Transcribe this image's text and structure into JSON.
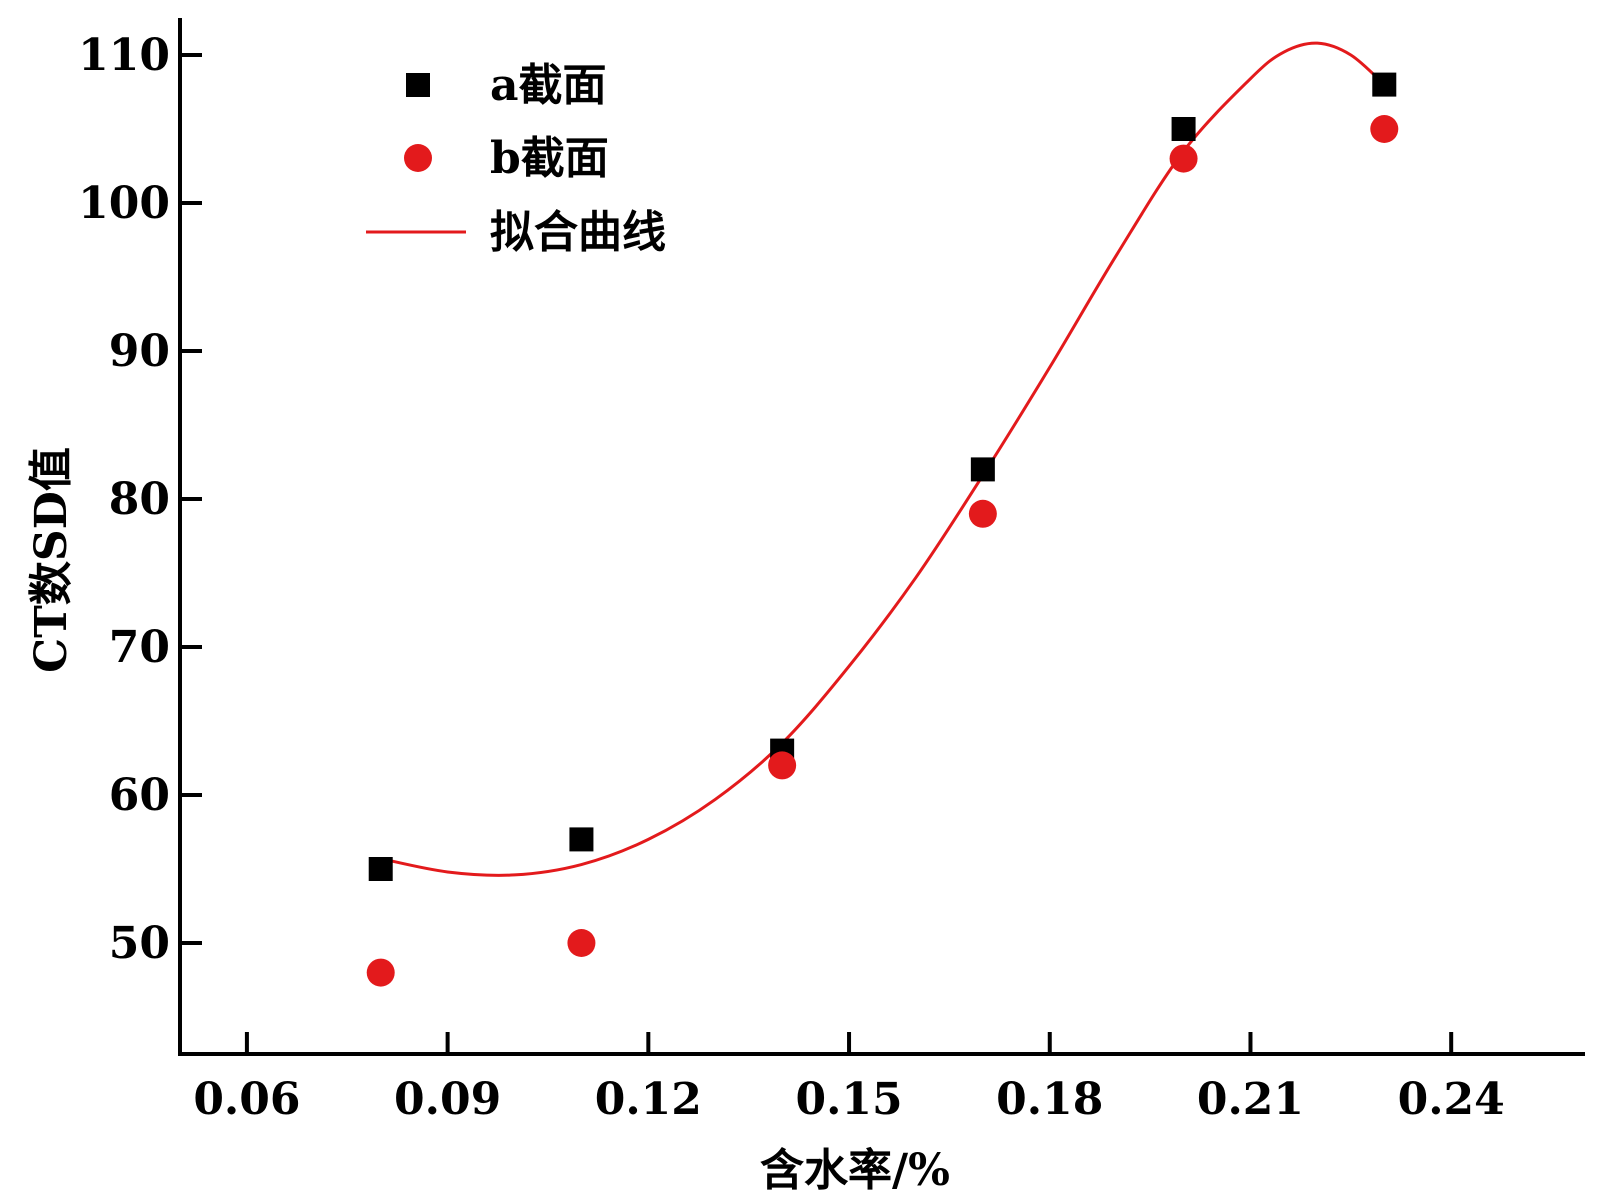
{
  "chart_data": {
    "type": "scatter",
    "title": "",
    "xlabel": "含水率/%",
    "ylabel": "CT数SD值",
    "xlim": [
      0.05,
      0.26
    ],
    "ylim": [
      42.5,
      112.5
    ],
    "x_ticks": [
      0.06,
      0.09,
      0.12,
      0.15,
      0.18,
      0.21,
      0.24
    ],
    "x_tick_labels": [
      "0.06",
      "0.09",
      "0.12",
      "0.15",
      "0.18",
      "0.21",
      "0.24"
    ],
    "y_ticks": [
      50,
      60,
      70,
      80,
      90,
      100,
      110
    ],
    "y_tick_labels": [
      "50",
      "60",
      "70",
      "80",
      "90",
      "100",
      "110"
    ],
    "grid": false,
    "legend_position": "top-left",
    "series": [
      {
        "name": "a截面",
        "kind": "scatter",
        "marker": "square",
        "color": "#000000",
        "x": [
          0.08,
          0.11,
          0.14,
          0.17,
          0.2,
          0.23
        ],
        "y": [
          55,
          57,
          63,
          82,
          105,
          108
        ]
      },
      {
        "name": "b截面",
        "kind": "scatter",
        "marker": "circle",
        "color": "#e31a1c",
        "x": [
          0.08,
          0.11,
          0.14,
          0.17,
          0.2,
          0.23
        ],
        "y": [
          48,
          50,
          62,
          79,
          103,
          105
        ]
      },
      {
        "name": "拟合曲线",
        "kind": "line",
        "color": "#e31a1c",
        "x": [
          0.08,
          0.09,
          0.1,
          0.11,
          0.12,
          0.13,
          0.14,
          0.15,
          0.16,
          0.17,
          0.18,
          0.19,
          0.2,
          0.21,
          0.215,
          0.22,
          0.225,
          0.23
        ],
        "y": [
          55.7,
          54.8,
          54.6,
          55.3,
          57.0,
          59.7,
          63.5,
          68.7,
          74.7,
          81.6,
          88.9,
          96.5,
          103.5,
          108.4,
          110.2,
          110.8,
          110.0,
          108.0
        ]
      }
    ]
  }
}
